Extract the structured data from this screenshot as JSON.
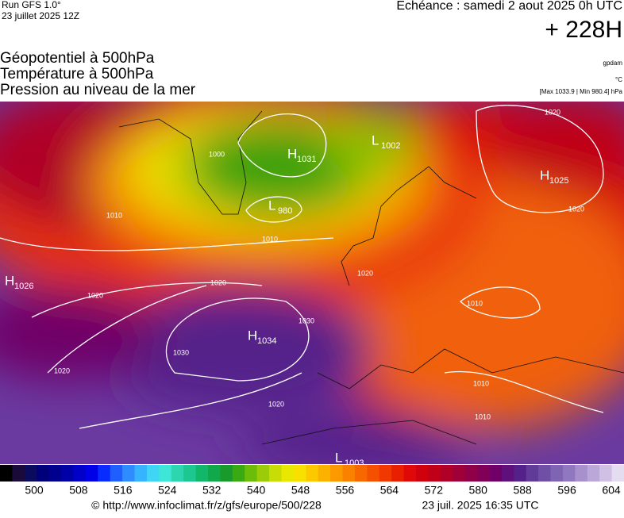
{
  "header": {
    "run": "Run GFS 1.0°",
    "run_date": "23 juillet 2025 12Z",
    "echeance": "Echéance : samedi 2 aout 2025 0h UTC",
    "lead": "+ 228H",
    "titles": [
      "Géopotentiel à 500hPa",
      "Température à 500hPa",
      "Pression au niveau de la mer"
    ],
    "unit_geo": "gpdam",
    "unit_temp": "°C",
    "extremes": "[Max 1033.9 | Min 980.4] hPa"
  },
  "map": {
    "centers": [
      {
        "letter": "H",
        "value": "1031"
      },
      {
        "letter": "L",
        "value": "1002"
      },
      {
        "letter": "L",
        "value": "980"
      },
      {
        "letter": "H",
        "value": "1025"
      },
      {
        "letter": "H",
        "value": "1026"
      },
      {
        "letter": "H",
        "value": "1034"
      },
      {
        "letter": "L",
        "value": "1003"
      }
    ],
    "isobar_labels": [
      "1010",
      "1020",
      "1020",
      "1030",
      "1020",
      "1020",
      "1020",
      "1020",
      "1010",
      "1010",
      "1000",
      "1010",
      "1020",
      "1030",
      "1010"
    ]
  },
  "scale": {
    "labels": [
      "500",
      "508",
      "516",
      "524",
      "532",
      "540",
      "548",
      "556",
      "564",
      "572",
      "580",
      "588",
      "596",
      "604"
    ],
    "colors": [
      "#000000",
      "#1a0a3a",
      "#0b0b5e",
      "#00007a",
      "#00008f",
      "#0000a8",
      "#0000c8",
      "#0000e8",
      "#0a2bff",
      "#1f5fff",
      "#2f8cff",
      "#36b4ff",
      "#3fd6f5",
      "#3ee6d8",
      "#2ed6b0",
      "#1dc890",
      "#12b86a",
      "#10a84a",
      "#1a9a2a",
      "#3aaa12",
      "#6cbc0a",
      "#9ccc08",
      "#c8dc06",
      "#e8e800",
      "#f8e000",
      "#fcc800",
      "#fcb000",
      "#fc9800",
      "#fa8000",
      "#f86800",
      "#f45000",
      "#f03800",
      "#e82000",
      "#e00808",
      "#d0000c",
      "#c00018",
      "#b00028",
      "#a00038",
      "#900048",
      "#800058",
      "#700068",
      "#60107a",
      "#54208a",
      "#603c98",
      "#7050a6",
      "#8064b4",
      "#9078c0",
      "#a890cc",
      "#bca8d8",
      "#d0c0e4",
      "#e4dcef"
    ]
  },
  "footer": {
    "url": "© http://www.infoclimat.fr/z/gfs/europe/500/228",
    "timestamp": "23 juil. 2025 16:35 UTC"
  }
}
